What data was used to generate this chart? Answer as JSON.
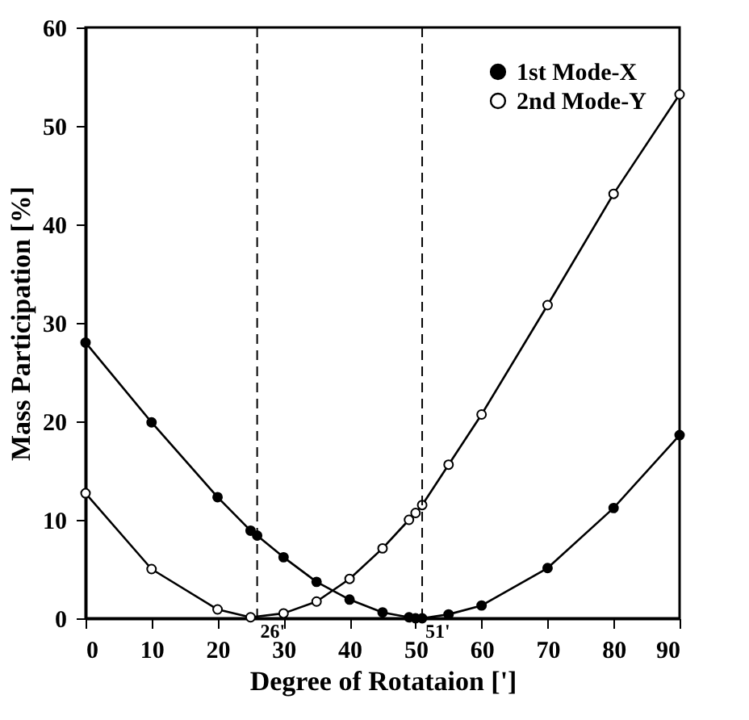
{
  "chart_data": {
    "type": "line",
    "xlabel": "Degree of Rotataion [']",
    "ylabel": "Mass Participation [%]",
    "xlim": [
      0,
      90
    ],
    "xticks": [
      0,
      10,
      20,
      30,
      40,
      50,
      60,
      70,
      80,
      90
    ],
    "ylim": [
      0,
      60
    ],
    "yticks": [
      0,
      10,
      20,
      30,
      40,
      50,
      60
    ],
    "grid": false,
    "legend": "top right",
    "marker": "circle",
    "line_style": "solid",
    "series": [
      {
        "name": "1st  Mode-X",
        "color": "#000000",
        "x": [
          0,
          10,
          20,
          25,
          26,
          30,
          35,
          40,
          45,
          49,
          50,
          51,
          55,
          60,
          70,
          80,
          90
        ],
        "values": [
          28,
          19.9,
          12.3,
          8.9,
          8.4,
          6.2,
          3.7,
          1.9,
          0.6,
          0.1,
          0,
          0,
          0.4,
          1.3,
          5.1,
          11.2,
          18.6
        ]
      },
      {
        "name": "2nd Mode-Y",
        "color": "#000000",
        "x": [
          0,
          10,
          20,
          25,
          30,
          35,
          40,
          45,
          49,
          50,
          51,
          55,
          60,
          70,
          80,
          90
        ],
        "values": [
          12.7,
          5,
          0.9,
          0.1,
          0.5,
          1.7,
          4,
          7.1,
          10,
          10.7,
          11.5,
          15.6,
          20.7,
          31.8,
          43.1,
          53.2
        ]
      }
    ],
    "ref_lines": [
      {
        "axis": "x",
        "value": 26,
        "label": "26'",
        "line_style": "dashed"
      },
      {
        "axis": "x",
        "value": 51,
        "label": "51'",
        "line_style": "dashed"
      }
    ]
  }
}
